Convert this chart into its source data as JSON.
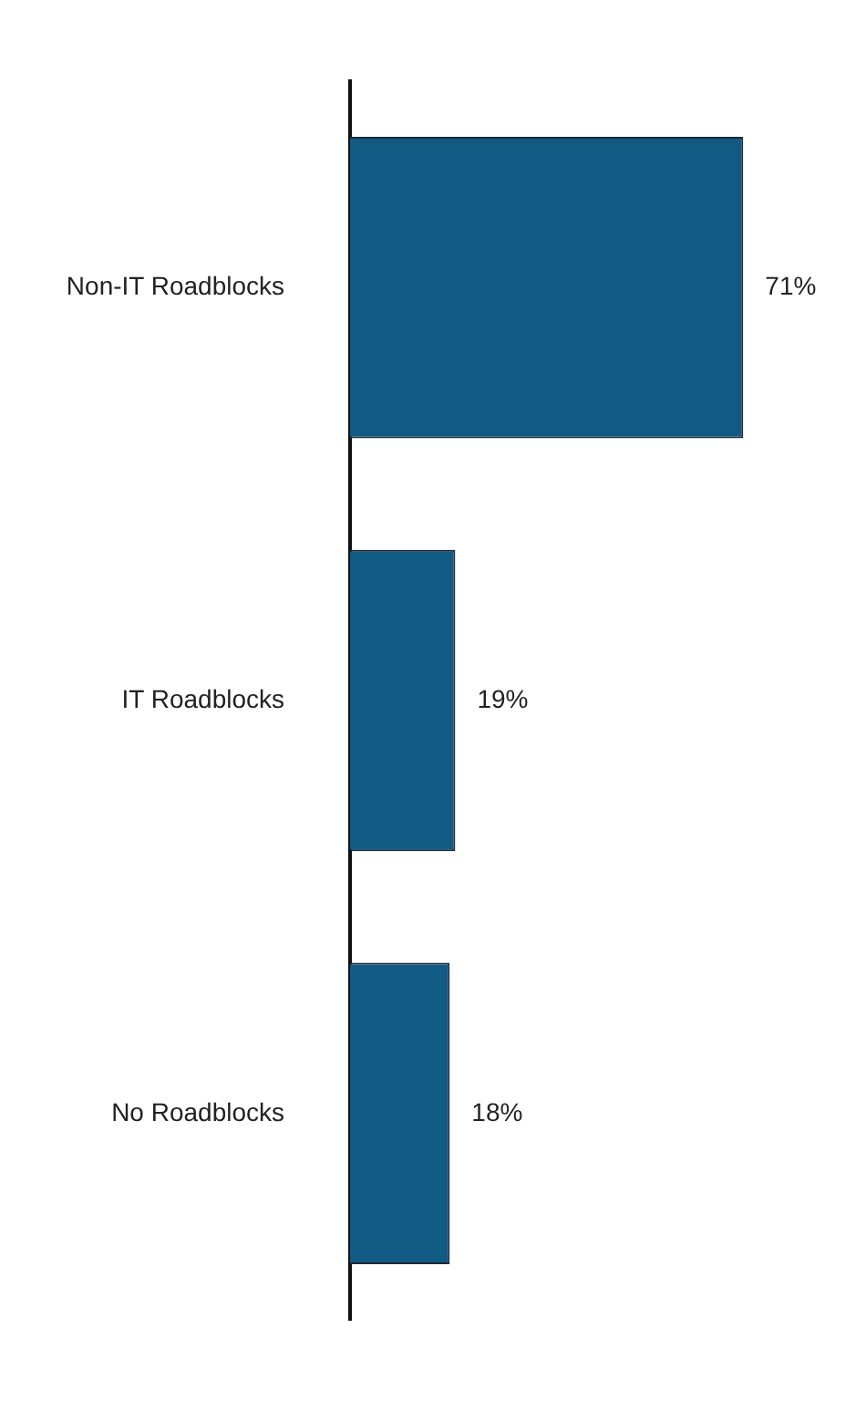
{
  "chart_data": {
    "type": "bar",
    "orientation": "horizontal",
    "categories": [
      "Non-IT Roadblocks",
      "IT Roadblocks",
      "No Roadblocks"
    ],
    "values": [
      71,
      19,
      18
    ],
    "value_labels": [
      "71%",
      "19%",
      "18%"
    ],
    "color": "#115a84",
    "legend": false,
    "tick_labels": "y"
  }
}
